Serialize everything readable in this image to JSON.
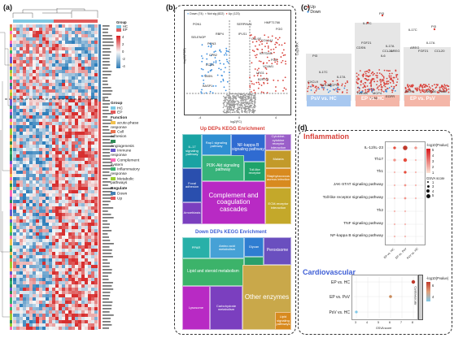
{
  "panels": {
    "a": "(a)",
    "b": "(b)",
    "c": "(c)",
    "d": "(d)"
  },
  "heatmap": {
    "legend_group_title": "Group",
    "legend_group": [
      {
        "label": "HC",
        "color": "#7ec8e3"
      },
      {
        "label": "EP",
        "color": "#e15a5a"
      }
    ],
    "scale_ticks": [
      "4",
      "2",
      "0",
      "-2",
      "-4"
    ],
    "legend_group2_title": "Group",
    "legend_group2": [
      {
        "label": "HC",
        "color": "#7ec8e3"
      },
      {
        "label": "EP",
        "color": "#e15a5a"
      }
    ],
    "legend_function_title": "Function",
    "legend_function": [
      {
        "label": "acute-phase response",
        "color": "#f2c14e"
      },
      {
        "label": "Cell adhesion",
        "color": "#e97451"
      },
      {
        "label": "Angiogenesis",
        "color": "#2e8b57"
      },
      {
        "label": "Immune response",
        "color": "#6a5acd"
      },
      {
        "label": "Complement system",
        "color": "#ff69b4"
      },
      {
        "label": "Inflammatory response",
        "color": "#3cb371"
      },
      {
        "label": "Metabolic pathways",
        "color": "#9acd32"
      }
    ],
    "legend_regulate_title": "Regulate",
    "legend_regulate": [
      {
        "label": "Down",
        "color": "#4682b4"
      },
      {
        "label": "Up",
        "color": "#e15a5a"
      }
    ]
  },
  "volcano": {
    "legend": [
      {
        "label": "Down (74)",
        "color": "#3b8ede"
      },
      {
        "label": "Not sig (822)",
        "color": "#9a9a9a"
      },
      {
        "label": "Up (123)",
        "color": "#d9413a"
      }
    ],
    "xlabel": "log2(FC)",
    "ylabel": "-log10(FDR)",
    "x_ticks": [
      "-4",
      "0",
      "4"
    ],
    "gene_labels": [
      "PON1",
      "SERPINA1",
      "HMFT1766",
      "FGG",
      "RBP4",
      "IPLS1",
      "CAL9S",
      "COL1A1",
      "SELENOP",
      "PON3",
      "CPB2",
      "KRTDAP",
      "FGB",
      "ECM1",
      "VCAM1",
      "LRG1",
      "VASN",
      "B2R701",
      "BASP1"
    ]
  },
  "up_kegg": {
    "title": "Up DEPs KEGG Enrichment",
    "cells": [
      "IL-17 signaling pathway",
      "Rap1 signaling pathway",
      "NF-kappa B signaling pathway",
      "PI3K-Akt signaling pathway",
      "Complement and coagulation cascades",
      "Cytokine-cytokine receptor interaction",
      "Malaria",
      "Toll-like receptor",
      "Staphylococcus aureus infection",
      "Focal adhesion",
      "ECM-receptor interaction",
      "Amoebiasis"
    ]
  },
  "down_kegg": {
    "title": "Down DEPs KEGG Enrichment",
    "cells": [
      "Lipid and steroid metabolism",
      "Amino acid metabolism",
      "Carbohydrate metabolism",
      "Other enzymes",
      "Peroxisome",
      "Lysosome",
      "Lipid signaling pathways",
      "Glycolysis",
      "PPAR",
      "Glycan"
    ]
  },
  "panel_c": {
    "legend": [
      {
        "label": "Up",
        "color": "#d9413a"
      },
      {
        "label": "Down",
        "color": "#3b8ede"
      }
    ],
    "ylabel": "Log2NPX",
    "groups": [
      {
        "label": "PsV vs. HC",
        "color": "#a8c8f0",
        "genes": [
          "PI3",
          "IL17C",
          "IL17A",
          "CXCL9",
          "CCL20",
          "MCPS"
        ]
      },
      {
        "label": "EP vs. HC",
        "color": "#f4b6a8",
        "genes": [
          "IL17C",
          "PI3",
          "IL17A",
          "FGF21",
          "CCL20",
          "CDSN",
          "IL6",
          "AREG",
          "TWEAK",
          "MCP4",
          "EGFR",
          "PON3"
        ]
      },
      {
        "label": "EP vs. PsV",
        "color": "#f4b6a8",
        "genes": [
          "IL17C",
          "PI3",
          "AREG",
          "IL17A",
          "FGF21",
          "CCL20",
          "EGFR",
          "TWEAK",
          "TRAIL"
        ]
      }
    ]
  },
  "panel_d": {
    "inflammation_title": "Inflammation",
    "cardio_title": "Cardiovascular",
    "inflammation_rows": [
      "IL-12/IL-23",
      "Th17",
      "Th1",
      "JAK-STAT signaling pathway",
      "Toll-like receptor signaling pathway",
      "Th2",
      "TNF signaling pathway",
      "NF-kappa B signaling pathway"
    ],
    "inflammation_cols": [
      "EP vs. HC",
      "EP vs. PsV",
      "PsV vs. HC"
    ],
    "color_legend_title": "-log10(Pvalue)",
    "color_ticks": [
      "5",
      "4",
      "3",
      "2",
      "1"
    ],
    "size_legend_title": "GSVA score",
    "size_ticks": [
      "1",
      "3",
      "4",
      "5"
    ],
    "cardio_rows": [
      "EP vs. HC",
      "EP vs. PsV",
      "PsV vs. HC"
    ],
    "cardio_side_label": "Cardiovascular",
    "cardio_color_title": "-log10(Pvalue)",
    "cardio_color_ticks": [
      "6",
      "4"
    ],
    "cardio_xlabel": "GSVA score",
    "cardio_x_ticks": [
      "3",
      "4",
      "5",
      "6",
      "7",
      "8"
    ]
  }
}
